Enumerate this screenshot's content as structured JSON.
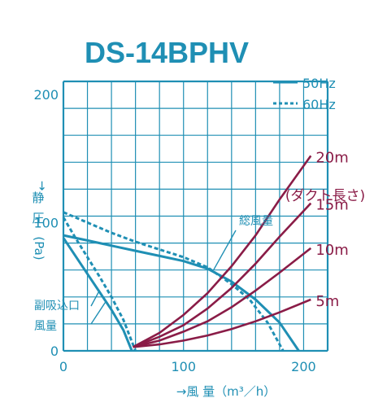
{
  "chart_data": {
    "type": "line",
    "title": "DS-14BPHV",
    "xlabel": "→風 量（m³／h）",
    "ylabel_vertical": [
      "→",
      "静",
      "圧",
      "(Pa)"
    ],
    "xlim": [
      0,
      220
    ],
    "ylim": [
      0,
      210
    ],
    "x_ticks": [
      0,
      100,
      200
    ],
    "y_ticks": [
      0,
      100,
      200
    ],
    "grid": true,
    "legend": {
      "position": "top-right",
      "items": [
        {
          "style": "solid",
          "label": "50Hz"
        },
        {
          "style": "dotted",
          "label": "60Hz"
        }
      ]
    },
    "colors": {
      "curve": "#1f8fb4",
      "duct": "#8a1c47",
      "grid": "#1f8fb4"
    },
    "annotations": {
      "total_airflow": "総風量",
      "sub_intake": [
        "副吸込口",
        "風量"
      ],
      "duct_header": "(ダクト長さ)"
    },
    "series": [
      {
        "key": "total_50hz",
        "style": "solid",
        "points": [
          [
            0,
            90
          ],
          [
            20,
            86
          ],
          [
            40,
            82
          ],
          [
            60,
            78
          ],
          [
            80,
            74
          ],
          [
            100,
            70
          ],
          [
            120,
            64
          ],
          [
            140,
            54
          ],
          [
            160,
            40
          ],
          [
            180,
            22
          ],
          [
            196,
            0
          ]
        ]
      },
      {
        "key": "total_60hz",
        "style": "dotted",
        "points": [
          [
            0,
            108
          ],
          [
            20,
            100
          ],
          [
            40,
            92
          ],
          [
            60,
            85
          ],
          [
            80,
            79
          ],
          [
            100,
            73
          ],
          [
            120,
            65
          ],
          [
            140,
            52
          ],
          [
            155,
            40
          ],
          [
            170,
            22
          ],
          [
            183,
            0
          ]
        ]
      },
      {
        "key": "sub_50hz",
        "style": "solid",
        "points": [
          [
            0,
            88
          ],
          [
            10,
            74
          ],
          [
            20,
            60
          ],
          [
            30,
            46
          ],
          [
            40,
            32
          ],
          [
            50,
            16
          ],
          [
            57,
            0
          ]
        ]
      },
      {
        "key": "sub_60hz",
        "style": "dotted",
        "points": [
          [
            0,
            104
          ],
          [
            10,
            88
          ],
          [
            20,
            73
          ],
          [
            30,
            58
          ],
          [
            40,
            42
          ],
          [
            50,
            24
          ],
          [
            60,
            0
          ]
        ]
      }
    ],
    "duct_curves": [
      {
        "label": "20m",
        "points": [
          [
            58,
            3
          ],
          [
            80,
            14
          ],
          [
            100,
            28
          ],
          [
            120,
            45
          ],
          [
            140,
            66
          ],
          [
            160,
            90
          ],
          [
            180,
            118
          ],
          [
            206,
            152
          ]
        ]
      },
      {
        "label": "15m",
        "points": [
          [
            58,
            3
          ],
          [
            80,
            11
          ],
          [
            100,
            20
          ],
          [
            120,
            33
          ],
          [
            140,
            49
          ],
          [
            160,
            68
          ],
          [
            180,
            89
          ],
          [
            206,
            115
          ]
        ]
      },
      {
        "label": "10m",
        "points": [
          [
            58,
            3
          ],
          [
            80,
            8
          ],
          [
            100,
            15
          ],
          [
            120,
            23
          ],
          [
            140,
            34
          ],
          [
            160,
            47
          ],
          [
            180,
            61
          ],
          [
            206,
            80
          ]
        ]
      },
      {
        "label": "5m",
        "points": [
          [
            58,
            3
          ],
          [
            80,
            5
          ],
          [
            100,
            8
          ],
          [
            120,
            12
          ],
          [
            140,
            17
          ],
          [
            160,
            23
          ],
          [
            180,
            30
          ],
          [
            206,
            40
          ]
        ]
      }
    ]
  }
}
